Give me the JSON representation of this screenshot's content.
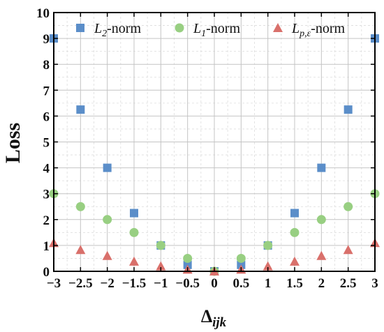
{
  "chart_data": {
    "type": "scatter",
    "title": "",
    "xlabel_base": "Δ",
    "xlabel_sub": "ijk",
    "ylabel": "Loss",
    "xlim": [
      -3,
      3
    ],
    "ylim": [
      0,
      10
    ],
    "x_ticks": [
      "−3",
      "−2.5",
      "−2",
      "−1.5",
      "−1",
      "−0.5",
      "0",
      "0.5",
      "1",
      "1.5",
      "2",
      "2.5",
      "3"
    ],
    "y_ticks": [
      "0",
      "1",
      "2",
      "3",
      "4",
      "5",
      "6",
      "7",
      "8",
      "9",
      "10"
    ],
    "grid": true,
    "legend_position": "top",
    "series": [
      {
        "marker": "square",
        "color": "#5b8ec9",
        "legend": {
          "main": "L",
          "sub": "2",
          "suffix": "-norm"
        },
        "points": [
          [
            -3,
            9
          ],
          [
            -2.5,
            6.25
          ],
          [
            -2,
            4
          ],
          [
            -1.5,
            2.25
          ],
          [
            -1,
            1
          ],
          [
            -0.5,
            0.25
          ],
          [
            0,
            0
          ],
          [
            0.5,
            0.25
          ],
          [
            1,
            1
          ],
          [
            1.5,
            2.25
          ],
          [
            2,
            4
          ],
          [
            2.5,
            6.25
          ],
          [
            3,
            9
          ]
        ]
      },
      {
        "marker": "circle",
        "color": "#98cf82",
        "legend": {
          "main": "L",
          "sub": "1",
          "suffix": "-norm"
        },
        "points": [
          [
            -3,
            3
          ],
          [
            -2.5,
            2.5
          ],
          [
            -2,
            2
          ],
          [
            -1.5,
            1.5
          ],
          [
            -1,
            1
          ],
          [
            -0.5,
            0.5
          ],
          [
            0,
            0
          ],
          [
            0.5,
            0.5
          ],
          [
            1,
            1
          ],
          [
            1.5,
            1.5
          ],
          [
            2,
            2
          ],
          [
            2.5,
            2.5
          ],
          [
            3,
            3
          ]
        ]
      },
      {
        "marker": "triangle",
        "color": "#d9706b",
        "legend": {
          "main": "L",
          "sub": "p,ε",
          "suffix": "-norm"
        },
        "points": [
          [
            -3,
            1.1
          ],
          [
            -2.5,
            0.83
          ],
          [
            -2,
            0.6
          ],
          [
            -1.5,
            0.38
          ],
          [
            -1,
            0.2
          ],
          [
            -0.5,
            0.07
          ],
          [
            0,
            0.0
          ],
          [
            0.5,
            0.07
          ],
          [
            1,
            0.2
          ],
          [
            1.5,
            0.38
          ],
          [
            2,
            0.6
          ],
          [
            2.5,
            0.83
          ],
          [
            3,
            1.1
          ]
        ]
      }
    ]
  }
}
